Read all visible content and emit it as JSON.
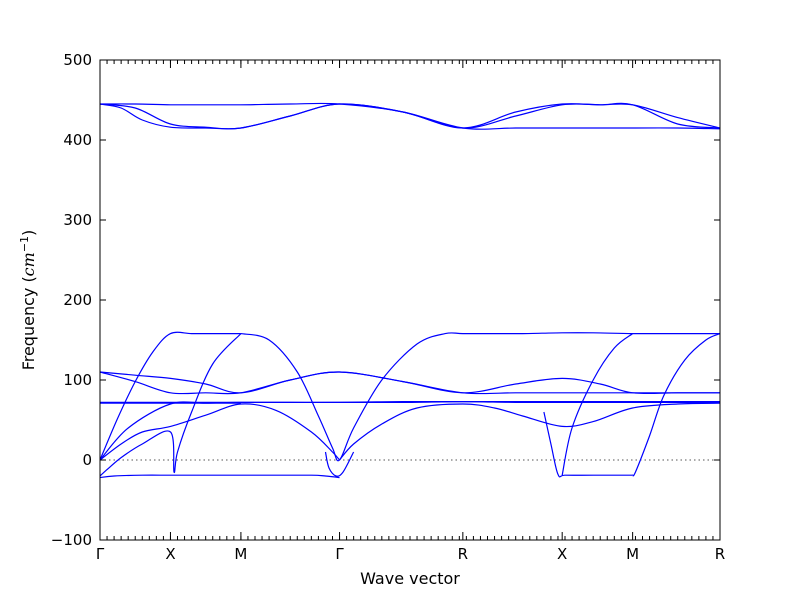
{
  "chart_data": {
    "type": "line",
    "title": "",
    "xlabel": "Wave vector",
    "ylabel_prefix": "Frequency (",
    "ylabel_unit_base": "cm",
    "ylabel_unit_exp": "−1",
    "ylabel_suffix": ")",
    "ylim": [
      -100,
      500
    ],
    "yticks": [
      -100,
      0,
      100,
      200,
      300,
      400,
      500
    ],
    "ytick_labels": [
      "−100",
      "0",
      "100",
      "200",
      "300",
      "400",
      "500"
    ],
    "xlim": [
      0,
      8.8
    ],
    "high_symmetry_points": [
      {
        "label": "Γ",
        "x": 0
      },
      {
        "label": "X",
        "x": 1.0
      },
      {
        "label": "M",
        "x": 2.0
      },
      {
        "label": "Γ",
        "x": 3.4
      },
      {
        "label": "R",
        "x": 5.15
      },
      {
        "label": "X",
        "x": 6.56
      },
      {
        "label": "M",
        "x": 7.56
      },
      {
        "label": "R",
        "x": 8.8
      }
    ],
    "zero_line": true,
    "grid": false,
    "color": "#0000ff",
    "series": [
      {
        "x": [
          0,
          0.5,
          1.0,
          1.5,
          2.0,
          2.7,
          3.4,
          4.3,
          5.15,
          5.9,
          6.56,
          7.1,
          7.56,
          8.2,
          8.8
        ],
        "y": [
          445,
          445,
          444,
          444,
          444,
          445,
          445,
          435,
          415,
          435,
          445,
          444,
          444,
          428,
          415
        ]
      },
      {
        "x": [
          0,
          0.5,
          1.0,
          1.5,
          2.0,
          2.7,
          3.4,
          4.3,
          5.15,
          5.9,
          6.56,
          7.1,
          7.56,
          8.2,
          8.8
        ],
        "y": [
          445,
          440,
          420,
          416,
          415,
          430,
          445,
          435,
          415,
          415,
          415,
          415,
          415,
          415,
          414
        ]
      },
      {
        "x": [
          0,
          0.3,
          0.6,
          1.0,
          1.5,
          2.0,
          2.7,
          3.4,
          4.3,
          5.15,
          5.9,
          6.56,
          7.1,
          7.56,
          8.2,
          8.8
        ],
        "y": [
          445,
          440,
          425,
          416,
          415,
          415,
          430,
          445,
          435,
          415,
          430,
          444,
          444,
          444,
          420,
          415
        ]
      },
      {
        "x": [
          0,
          0.5,
          1.0,
          1.5,
          2.0,
          2.7,
          3.4,
          4.3,
          5.15,
          5.9,
          6.56,
          7.1,
          7.56,
          8.2,
          8.8
        ],
        "y": [
          110,
          106,
          102,
          95,
          84,
          100,
          110,
          98,
          84,
          95,
          102,
          95,
          84,
          84,
          84
        ]
      },
      {
        "x": [
          0,
          0.5,
          1.0,
          1.5,
          2.0,
          2.7,
          3.4,
          4.3,
          5.15,
          5.9,
          6.56,
          7.1,
          7.56,
          8.2,
          8.8
        ],
        "y": [
          110,
          98,
          84,
          84,
          84,
          100,
          110,
          98,
          84,
          84,
          84,
          84,
          84,
          84,
          84
        ]
      },
      {
        "x": [
          0,
          0.5,
          1.0,
          1.5,
          2.0,
          2.7,
          3.4,
          4.3,
          5.15,
          5.9,
          6.56,
          7.1,
          7.56,
          8.2,
          8.8
        ],
        "y": [
          72,
          72,
          72,
          72,
          72,
          72,
          72,
          72,
          73,
          72,
          72,
          72,
          72,
          72,
          72
        ]
      },
      {
        "x": [
          0,
          0.5,
          1.0,
          1.5,
          2.0,
          2.7,
          3.4,
          4.3,
          5.15,
          5.9,
          6.56,
          7.1,
          7.56,
          8.2,
          8.8
        ],
        "y": [
          71,
          71,
          71,
          71,
          72,
          72,
          72,
          73,
          73,
          73,
          73,
          73,
          73,
          73,
          73
        ]
      },
      {
        "x": [
          0,
          0.25,
          0.5,
          0.75,
          1.0,
          1.3,
          1.6,
          2.0
        ],
        "y": [
          0,
          52,
          98,
          135,
          158,
          158,
          158,
          158
        ]
      },
      {
        "x": [
          2.0,
          2.4,
          2.8,
          3.1,
          3.3,
          3.4,
          3.6,
          4.0,
          4.5,
          4.9,
          5.15,
          5.6,
          6.0,
          6.56,
          7.0,
          7.56,
          8.2,
          8.8
        ],
        "y": [
          158,
          150,
          110,
          55,
          15,
          0,
          40,
          100,
          145,
          158,
          158,
          158,
          158,
          159,
          159,
          158,
          158,
          158
        ]
      },
      {
        "x": [
          0,
          0.3,
          0.6,
          1.0,
          1.5,
          2.0,
          2.5,
          3.0,
          3.3,
          3.4
        ],
        "y": [
          0,
          20,
          35,
          42,
          56,
          70,
          62,
          35,
          10,
          0
        ]
      },
      {
        "x": [
          0,
          0.4,
          1.0,
          1.5,
          2.0
        ],
        "y": [
          0,
          40,
          70,
          71,
          71
        ]
      },
      {
        "x": [
          3.4,
          3.6,
          4.0,
          4.5,
          5.15,
          5.6,
          6.0,
          6.56,
          7.0,
          7.56,
          8.2,
          8.8
        ],
        "y": [
          0,
          20,
          45,
          65,
          70,
          65,
          55,
          42,
          48,
          65,
          70,
          71
        ]
      },
      {
        "x": [
          0,
          0.1,
          0.3,
          0.6,
          1.0,
          1.05,
          1.1,
          1.3,
          1.6,
          2.0
        ],
        "y": [
          -20,
          -12,
          3,
          20,
          35,
          -15,
          10,
          60,
          120,
          158
        ]
      },
      {
        "x": [
          0,
          0.2,
          0.6,
          1.0,
          1.5,
          2.0,
          2.5,
          3.0,
          3.2,
          3.4
        ],
        "y": [
          -22,
          -20,
          -19,
          -19,
          -19,
          -19,
          -19,
          -19,
          -20,
          -22
        ]
      },
      {
        "x": [
          3.2,
          3.25,
          3.35,
          3.45,
          3.6
        ],
        "y": [
          10,
          -10,
          -20,
          -15,
          10
        ]
      },
      {
        "x": [
          6.3,
          6.4,
          6.5,
          6.6,
          7.0,
          7.56
        ],
        "y": [
          60,
          20,
          -18,
          -19,
          -19,
          -19
        ]
      },
      {
        "x": [
          7.56,
          7.6,
          7.8,
          8.0,
          8.3,
          8.6,
          8.8
        ],
        "y": [
          -19,
          -15,
          30,
          80,
          125,
          150,
          158
        ]
      },
      {
        "x": [
          6.56,
          6.7,
          7.0,
          7.3,
          7.56
        ],
        "y": [
          -19,
          40,
          100,
          140,
          158
        ]
      }
    ]
  }
}
